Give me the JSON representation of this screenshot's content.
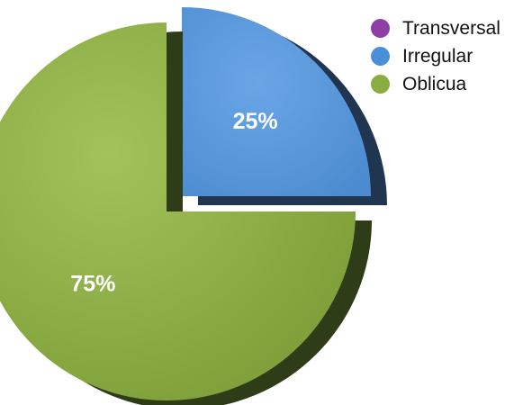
{
  "chart_data": {
    "type": "pie",
    "categories": [
      "Transversal",
      "Irregular",
      "Oblicua"
    ],
    "values": [
      0,
      25,
      75
    ],
    "value_labels": [
      "",
      "25%",
      "75%"
    ],
    "colors": [
      "#8e3fa6",
      "#4a90d9",
      "#8aac40"
    ],
    "exploded": [
      "Irregular"
    ],
    "legend_position": "top-right",
    "style": "3d"
  }
}
